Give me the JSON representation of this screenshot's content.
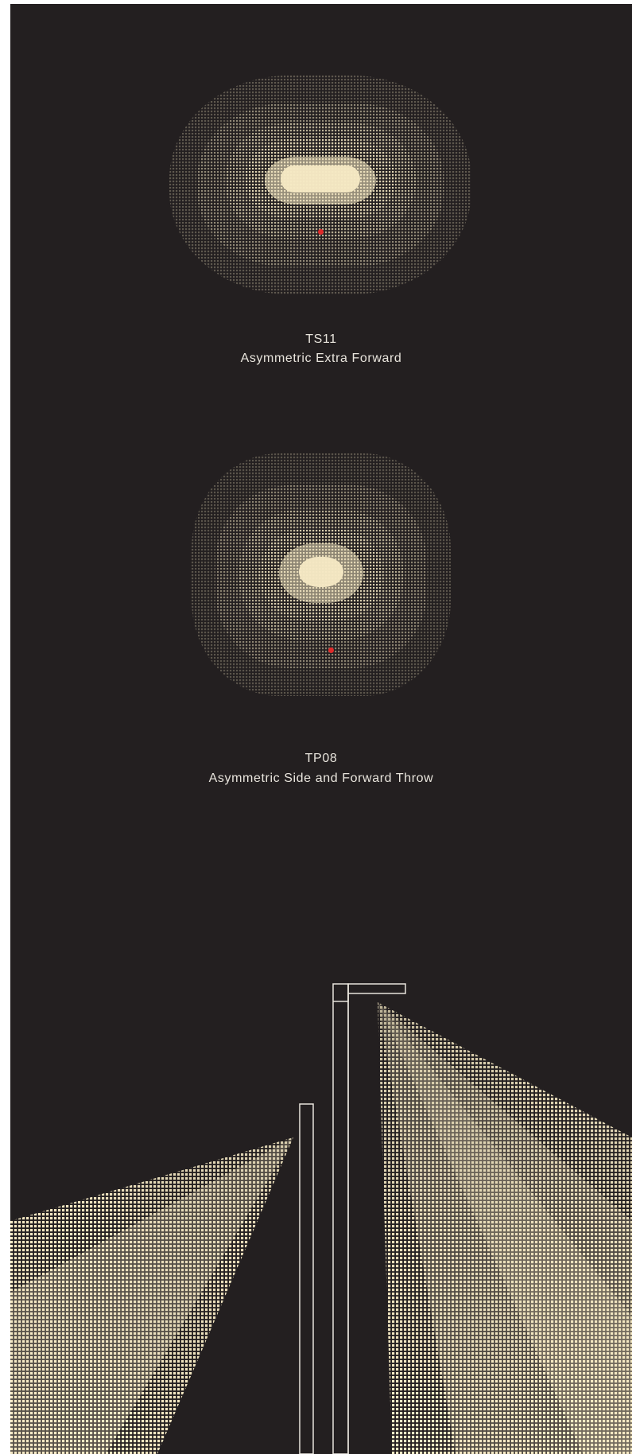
{
  "colors": {
    "background": "#231f20",
    "page": "#ffffff",
    "light": "#f5e9c4",
    "marker": "#e02a2a",
    "outline": "#e8e4dc",
    "text": "#e8e4dc"
  },
  "distributions": [
    {
      "code": "TS11",
      "name": "Asymmetric Extra Forward",
      "shape": "wide-oval",
      "marker_icon": "red-dot"
    },
    {
      "code": "TP08",
      "name": "Asymmetric Side and Forward Throw",
      "shape": "rounded-square",
      "marker_icon": "red-dot"
    }
  ],
  "scene": {
    "icon": "street-light-pole-with-light-cones"
  }
}
